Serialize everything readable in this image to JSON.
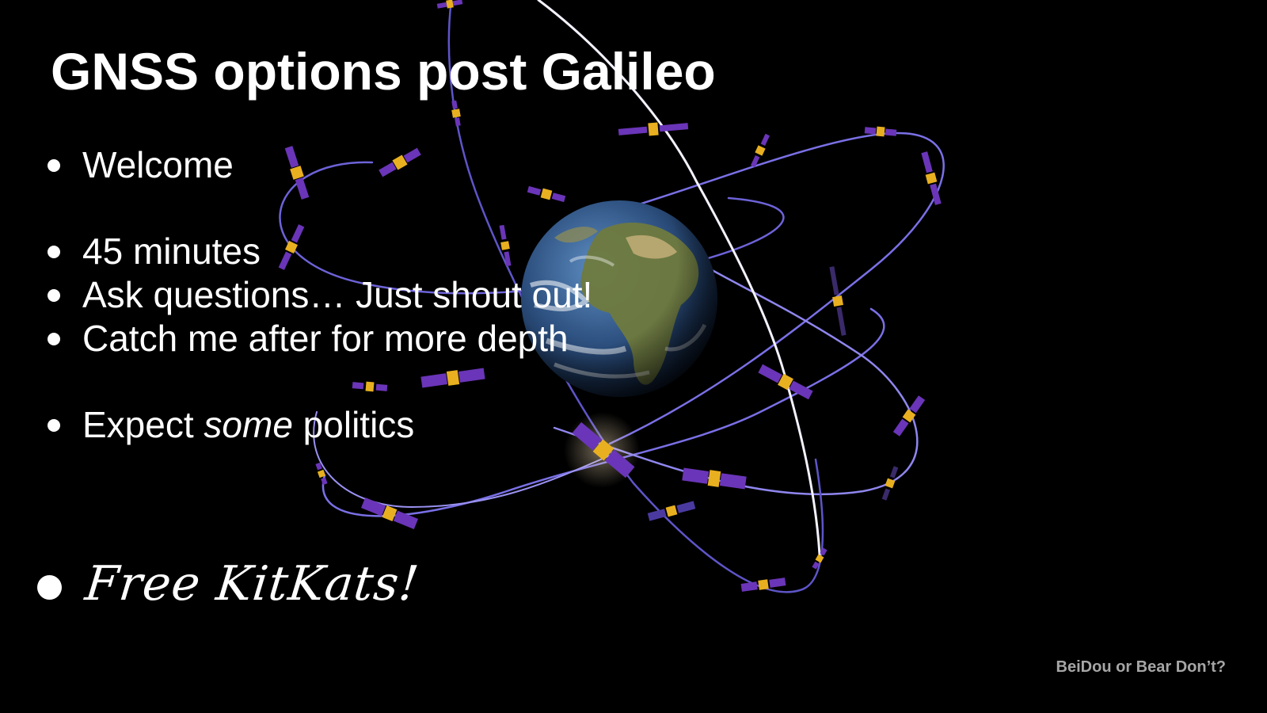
{
  "slide": {
    "title": "GNSS options post Galileo",
    "bullets": [
      {
        "text": "Welcome"
      },
      {
        "text": "45 minutes"
      },
      {
        "text": "Ask questions… Just shout out!"
      },
      {
        "text": "Catch me after for more depth"
      },
      {
        "text_before": "Expect ",
        "text_em": "some",
        "text_after": " politics"
      }
    ],
    "handwritten_bullet": "Free KitKats!",
    "footer": "BeiDou or Bear Don’t?"
  },
  "colors": {
    "background": "#000000",
    "text": "#ffffff",
    "footer_text": "#a6a6a6",
    "orbit": "#7b6fe0",
    "solar_panel": "#6a35b8",
    "satellite_body": "#e8b020"
  },
  "image": {
    "subject": "earth-with-satellite-constellation"
  }
}
